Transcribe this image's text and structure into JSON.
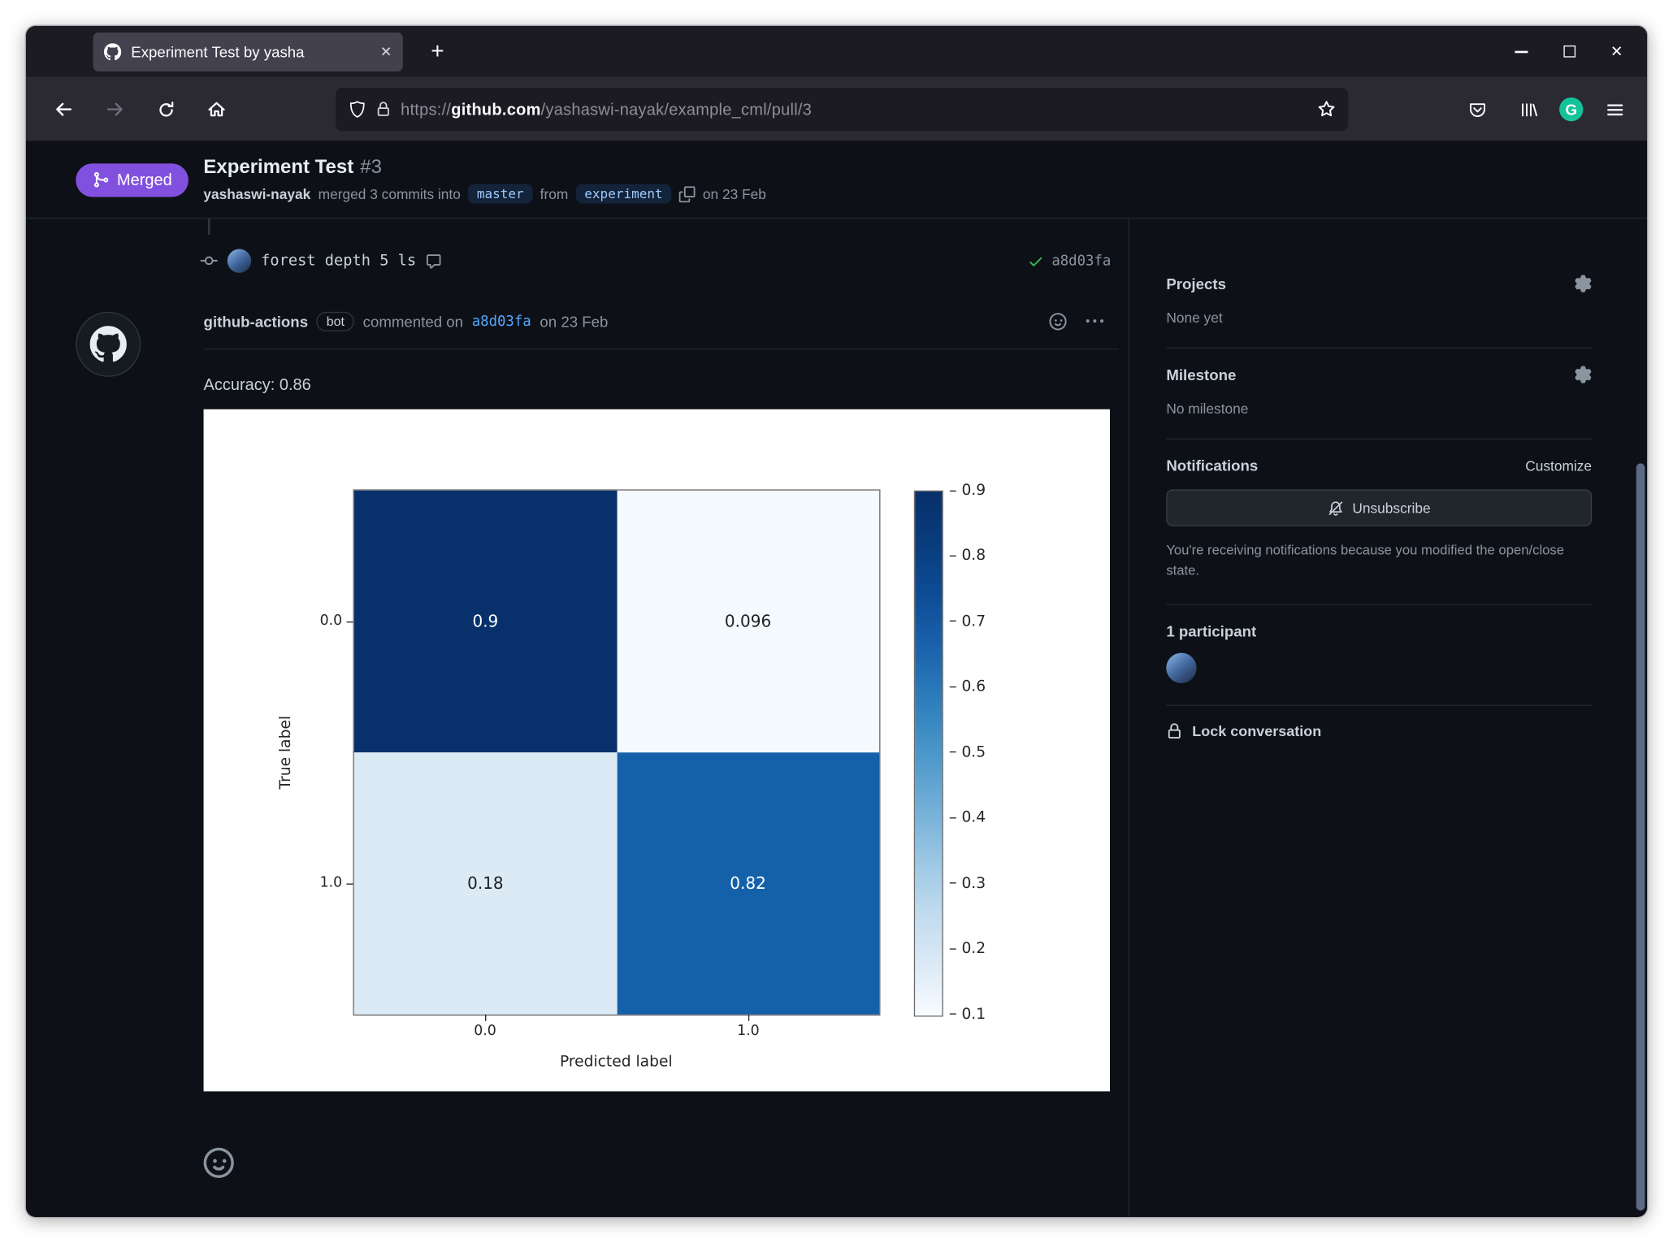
{
  "browser": {
    "tab": {
      "title": "Experiment Test by yasha"
    },
    "url": {
      "scheme": "https://",
      "domain": "github.com",
      "path": "/yashaswi-nayak/example_cml/pull/3"
    }
  },
  "pr": {
    "status": "Merged",
    "title": "Experiment Test",
    "number": "#3",
    "author": "yashaswi-nayak",
    "merge_text": "merged 3 commits into",
    "base_branch": "master",
    "from_word": "from",
    "head_branch": "experiment",
    "date": "on 23 Feb"
  },
  "timeline": {
    "commit_message": "forest depth 5 ls",
    "commit_sha": "a8d03fa",
    "comment": {
      "author": "github-actions",
      "bot_badge": "bot",
      "action_text": "commented on",
      "sha": "a8d03fa",
      "date": "on 23 Feb",
      "body_text": "Accuracy: 0.86"
    }
  },
  "sidebar": {
    "projects_title": "Projects",
    "projects_value": "None yet",
    "milestone_title": "Milestone",
    "milestone_value": "No milestone",
    "notifications_title": "Notifications",
    "customize_label": "Customize",
    "unsubscribe_label": "Unsubscribe",
    "notifications_note": "You're receiving notifications because you modified the open/close state.",
    "participants_title": "1 participant",
    "lock_label": "Lock conversation"
  },
  "chart_data": {
    "type": "heatmap",
    "title": "",
    "xlabel": "Predicted label",
    "ylabel": "True label",
    "x_tick_labels": [
      "0.0",
      "1.0"
    ],
    "y_tick_labels": [
      "0.0",
      "1.0"
    ],
    "matrix": [
      [
        0.9,
        0.096
      ],
      [
        0.18,
        0.82
      ]
    ],
    "cell_labels": [
      [
        "0.9",
        "0.096"
      ],
      [
        "0.18",
        "0.82"
      ]
    ],
    "cell_colors": [
      [
        "#08306b",
        "#f5fafe"
      ],
      [
        "#dceaf6",
        "#1561a9"
      ]
    ],
    "cell_text_colors": [
      [
        "#ffffff",
        "#1f1f1f"
      ],
      [
        "#1f1f1f",
        "#ffffff"
      ]
    ],
    "colormap": "Blues",
    "vmin": 0.096,
    "vmax": 0.9,
    "colorbar_ticks": [
      0.9,
      0.8,
      0.7,
      0.6,
      0.5,
      0.4,
      0.3,
      0.2,
      0.1
    ],
    "legend_position": "right-colorbar",
    "grid": false
  },
  "colors": {
    "merged_badge": "#8250df",
    "link": "#58a6ff",
    "success_check": "#3fb950",
    "page_bg": "#0d1117",
    "browser_chrome": "#1c1b22"
  },
  "icons": [
    "github-mark",
    "git-merge",
    "git-commit",
    "comment",
    "check",
    "smiley",
    "kebab",
    "copy",
    "gear",
    "bell-slash",
    "lock",
    "back-arrow",
    "forward-arrow",
    "reload",
    "home",
    "shield",
    "star",
    "pocket",
    "library",
    "grammarly",
    "menu",
    "close",
    "minimize",
    "maximize",
    "new-tab"
  ]
}
